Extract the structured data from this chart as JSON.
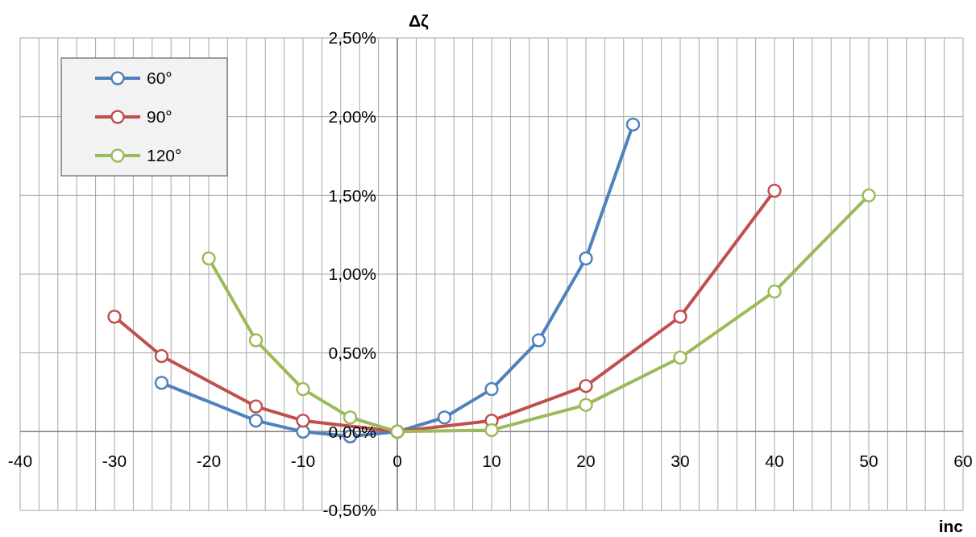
{
  "chart_data": {
    "type": "line",
    "xlabel": "inc",
    "ylabel": "Δζ",
    "xlim": [
      -40,
      60
    ],
    "xticks": [
      -40,
      -30,
      -20,
      -10,
      0,
      10,
      20,
      30,
      40,
      50,
      60
    ],
    "ylim": [
      -0.5,
      2.5
    ],
    "yticks": [
      {
        "value": -0.5,
        "label": "-0,50%"
      },
      {
        "value": 0,
        "label": "0,00%"
      },
      {
        "value": 0.5,
        "label": "0,50%"
      },
      {
        "value": 1,
        "label": "1,00%"
      },
      {
        "value": 1.5,
        "label": "1,50%"
      },
      {
        "value": 2,
        "label": "2,00%"
      },
      {
        "value": 2.5,
        "label": "2,50%"
      }
    ],
    "grid": true,
    "legend": "top left",
    "marker": "circle",
    "line_style": "solid",
    "series": [
      {
        "name": "60°",
        "color": "#4f81bd",
        "x": [
          -25,
          -15,
          -10,
          -5,
          0,
          5,
          10,
          15,
          20,
          25
        ],
        "values": [
          0.31,
          0.07,
          0.0,
          -0.03,
          0,
          0.09,
          0.27,
          0.58,
          1.1,
          1.95
        ]
      },
      {
        "name": "90°",
        "color": "#c0504d",
        "x": [
          -30,
          -25,
          -15,
          -10,
          0,
          10,
          20,
          30,
          40
        ],
        "values": [
          0.73,
          0.48,
          0.16,
          0.07,
          0,
          0.07,
          0.29,
          0.73,
          1.53
        ]
      },
      {
        "name": "120°",
        "color": "#9bbb59",
        "x": [
          -20,
          -15,
          -10,
          -5,
          0,
          10,
          20,
          30,
          40,
          50
        ],
        "values": [
          1.1,
          0.58,
          0.27,
          0.09,
          0,
          0.01,
          0.17,
          0.47,
          0.89,
          1.5
        ]
      }
    ]
  }
}
